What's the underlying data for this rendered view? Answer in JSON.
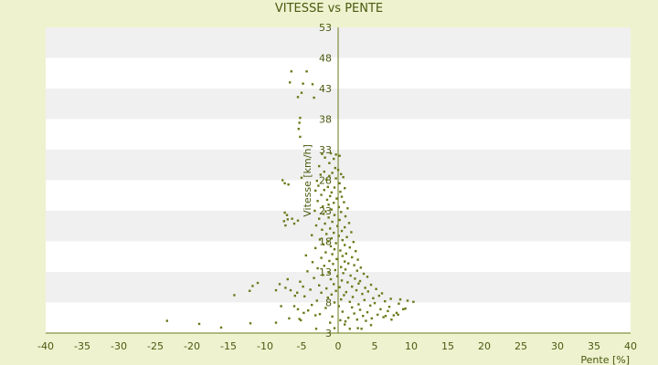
{
  "chart_data": {
    "type": "scatter",
    "title": "VITESSE vs PENTE",
    "xlabel": "Pente [%]",
    "ylabel": "Vitesse [km/h]",
    "xlim": [
      -40,
      40
    ],
    "ylim": [
      3,
      53
    ],
    "xticks": [
      -40,
      -35,
      -30,
      -25,
      -20,
      -15,
      -10,
      -5,
      0,
      5,
      10,
      15,
      20,
      25,
      30,
      35,
      40
    ],
    "yticks": [
      3,
      8,
      13,
      18,
      23,
      28,
      33,
      38,
      43,
      48,
      53
    ],
    "grid": "alternating-horizontal-bands",
    "colors": {
      "background": "#eef2cf",
      "plot_band_light": "#ffffff",
      "plot_band_dark": "#f0f0f0",
      "axis": "#6b7a1a",
      "marker": "#6b7a1a",
      "text": "#4a5a10"
    },
    "points": [
      [
        -6.4,
        45.8
      ],
      [
        -6.6,
        44.0
      ],
      [
        -4.8,
        43.8
      ],
      [
        -4.3,
        45.8
      ],
      [
        -3.5,
        43.7
      ],
      [
        -5.0,
        42.3
      ],
      [
        -3.3,
        41.5
      ],
      [
        -5.5,
        41.6
      ],
      [
        -5.2,
        38.2
      ],
      [
        -5.3,
        37.4
      ],
      [
        -5.4,
        36.4
      ],
      [
        -5.2,
        35.1
      ],
      [
        -2.2,
        32.3
      ],
      [
        -1.0,
        32.4
      ],
      [
        -0.3,
        32.2
      ],
      [
        0.2,
        32.0
      ],
      [
        -1.8,
        31.7
      ],
      [
        -0.6,
        31.5
      ],
      [
        -1.2,
        30.8
      ],
      [
        -2.6,
        30.3
      ],
      [
        -0.4,
        30.0
      ],
      [
        0.0,
        29.7
      ],
      [
        -1.9,
        29.4
      ],
      [
        -0.8,
        29.2
      ],
      [
        0.4,
        29.0
      ],
      [
        -2.4,
        28.9
      ],
      [
        -1.2,
        28.7
      ],
      [
        0.7,
        28.5
      ],
      [
        -5.0,
        28.4
      ],
      [
        -0.3,
        28.3
      ],
      [
        -1.6,
        28.1
      ],
      [
        -7.6,
        28.0
      ],
      [
        -2.9,
        27.9
      ],
      [
        -6.8,
        27.3
      ],
      [
        -7.3,
        27.5
      ],
      [
        0.2,
        27.5
      ],
      [
        -2.7,
        27.1
      ],
      [
        -1.4,
        26.9
      ],
      [
        -0.5,
        26.8
      ],
      [
        0.9,
        26.7
      ],
      [
        -1.9,
        26.4
      ],
      [
        -3.1,
        26.3
      ],
      [
        0.3,
        26.1
      ],
      [
        -0.9,
        26.0
      ],
      [
        -2.3,
        25.6
      ],
      [
        -1.1,
        25.4
      ],
      [
        0.5,
        25.3
      ],
      [
        -0.2,
        25.0
      ],
      [
        -1.5,
        24.8
      ],
      [
        -2.8,
        24.6
      ],
      [
        0.8,
        24.4
      ],
      [
        -0.6,
        24.3
      ],
      [
        -1.3,
        24.0
      ],
      [
        -2.1,
        23.7
      ],
      [
        0.1,
        23.6
      ],
      [
        1.3,
        23.4
      ],
      [
        -0.9,
        23.2
      ],
      [
        -3.2,
        23.0
      ],
      [
        -1.7,
        22.9
      ],
      [
        0.4,
        22.8
      ],
      [
        -7.3,
        22.7
      ],
      [
        -7.0,
        22.3
      ],
      [
        -6.9,
        21.6
      ],
      [
        -7.4,
        21.3
      ],
      [
        -6.3,
        21.7
      ],
      [
        -5.5,
        21.4
      ],
      [
        -7.2,
        20.6
      ],
      [
        -6.0,
        20.9
      ],
      [
        -2.0,
        22.5
      ],
      [
        -0.5,
        22.3
      ],
      [
        1.0,
        22.1
      ],
      [
        -1.3,
        21.9
      ],
      [
        -2.6,
        21.7
      ],
      [
        0.2,
        21.5
      ],
      [
        -0.8,
        21.2
      ],
      [
        1.5,
        21.0
      ],
      [
        -1.8,
        20.9
      ],
      [
        -3.0,
        20.6
      ],
      [
        -0.1,
        20.5
      ],
      [
        0.9,
        20.3
      ],
      [
        -1.1,
        20.1
      ],
      [
        -2.2,
        19.9
      ],
      [
        0.5,
        19.7
      ],
      [
        1.8,
        19.5
      ],
      [
        -0.6,
        19.4
      ],
      [
        -1.6,
        19.2
      ],
      [
        -3.6,
        19.0
      ],
      [
        0.1,
        18.9
      ],
      [
        1.2,
        18.7
      ],
      [
        -0.9,
        18.5
      ],
      [
        -2.5,
        18.3
      ],
      [
        0.6,
        18.2
      ],
      [
        -1.4,
        18.0
      ],
      [
        2.1,
        17.9
      ],
      [
        -0.3,
        17.7
      ],
      [
        -2.0,
        17.5
      ],
      [
        0.9,
        17.4
      ],
      [
        -1.0,
        17.2
      ],
      [
        1.6,
        17.0
      ],
      [
        -3.1,
        16.9
      ],
      [
        -0.5,
        16.7
      ],
      [
        0.3,
        16.5
      ],
      [
        2.4,
        16.4
      ],
      [
        -1.7,
        16.2
      ],
      [
        1.1,
        16.0
      ],
      [
        -0.8,
        15.9
      ],
      [
        -4.4,
        15.7
      ],
      [
        0.6,
        15.6
      ],
      [
        1.9,
        15.4
      ],
      [
        -2.3,
        15.3
      ],
      [
        -0.2,
        15.1
      ],
      [
        2.7,
        15.0
      ],
      [
        -1.2,
        14.8
      ],
      [
        0.9,
        14.7
      ],
      [
        -3.5,
        14.6
      ],
      [
        1.4,
        14.4
      ],
      [
        -0.7,
        14.3
      ],
      [
        2.2,
        14.1
      ],
      [
        -1.9,
        14.0
      ],
      [
        0.4,
        13.8
      ],
      [
        3.1,
        13.7
      ],
      [
        -2.8,
        13.6
      ],
      [
        1.0,
        13.4
      ],
      [
        -0.4,
        13.3
      ],
      [
        2.6,
        13.2
      ],
      [
        -4.2,
        13.1
      ],
      [
        -1.3,
        12.9
      ],
      [
        0.7,
        12.8
      ],
      [
        3.5,
        12.7
      ],
      [
        -2.1,
        12.5
      ],
      [
        1.7,
        12.4
      ],
      [
        -0.1,
        12.3
      ],
      [
        4.0,
        12.2
      ],
      [
        -3.3,
        12.0
      ],
      [
        2.3,
        11.9
      ],
      [
        -1.0,
        11.8
      ],
      [
        0.5,
        11.6
      ],
      [
        3.0,
        11.5
      ],
      [
        -5.2,
        11.4
      ],
      [
        1.3,
        11.3
      ],
      [
        -6.9,
        11.8
      ],
      [
        -8.0,
        11.0
      ],
      [
        -7.2,
        10.4
      ],
      [
        -6.5,
        10.0
      ],
      [
        -4.8,
        10.6
      ],
      [
        -5.6,
        9.6
      ],
      [
        -11.7,
        10.7
      ],
      [
        -11.0,
        11.2
      ],
      [
        -12.1,
        9.9
      ],
      [
        -14.2,
        9.2
      ],
      [
        -8.5,
        10.0
      ],
      [
        -5.9,
        9.1
      ],
      [
        2.8,
        11.1
      ],
      [
        -0.6,
        11.0
      ],
      [
        4.5,
        10.9
      ],
      [
        -2.6,
        10.8
      ],
      [
        1.9,
        10.6
      ],
      [
        0.2,
        10.5
      ],
      [
        3.7,
        10.4
      ],
      [
        -1.6,
        10.3
      ],
      [
        5.2,
        10.2
      ],
      [
        -3.8,
        10.1
      ],
      [
        2.5,
        10.0
      ],
      [
        -0.3,
        9.9
      ],
      [
        4.1,
        9.8
      ],
      [
        1.1,
        9.7
      ],
      [
        -2.3,
        9.6
      ],
      [
        6.0,
        9.5
      ],
      [
        3.3,
        9.4
      ],
      [
        -0.9,
        9.3
      ],
      [
        0.8,
        9.2
      ],
      [
        5.6,
        9.1
      ],
      [
        -4.6,
        9.0
      ],
      [
        2.0,
        8.9
      ],
      [
        -1.4,
        8.8
      ],
      [
        4.8,
        8.7
      ],
      [
        7.2,
        8.6
      ],
      [
        0.4,
        8.5
      ],
      [
        3.6,
        8.4
      ],
      [
        -2.9,
        8.3
      ],
      [
        6.4,
        8.2
      ],
      [
        1.6,
        8.1
      ],
      [
        -0.5,
        8.0
      ],
      [
        5.0,
        7.9
      ],
      [
        8.3,
        7.8
      ],
      [
        2.8,
        7.7
      ],
      [
        -3.6,
        7.6
      ],
      [
        4.4,
        7.5
      ],
      [
        0.1,
        7.4
      ],
      [
        7.0,
        7.3
      ],
      [
        1.9,
        7.2
      ],
      [
        -1.7,
        7.1
      ],
      [
        9.2,
        7.0
      ],
      [
        5.8,
        6.9
      ],
      [
        3.0,
        6.8
      ],
      [
        -4.1,
        6.7
      ],
      [
        6.8,
        6.6
      ],
      [
        0.6,
        6.5
      ],
      [
        4.0,
        6.4
      ],
      [
        8.0,
        6.3
      ],
      [
        2.2,
        6.2
      ],
      [
        -2.5,
        6.1
      ],
      [
        5.4,
        6.0
      ],
      [
        7.6,
        5.9
      ],
      [
        3.4,
        5.8
      ],
      [
        -0.8,
        5.7
      ],
      [
        6.2,
        5.6
      ],
      [
        1.4,
        5.5
      ],
      [
        4.6,
        5.4
      ],
      [
        -5.3,
        5.3
      ],
      [
        2.6,
        5.2
      ],
      [
        0.3,
        5.1
      ],
      [
        3.8,
        5.0
      ],
      [
        1.0,
        4.9
      ],
      [
        8.5,
        8.5
      ],
      [
        9.5,
        8.3
      ],
      [
        10.3,
        8.1
      ],
      [
        8.9,
        6.9
      ],
      [
        8.2,
        6.0
      ],
      [
        7.3,
        5.2
      ],
      [
        6.5,
        5.8
      ],
      [
        -6.0,
        7.4
      ],
      [
        -5.5,
        6.9
      ],
      [
        -4.7,
        6.3
      ],
      [
        -3.1,
        5.9
      ],
      [
        -7.8,
        7.4
      ],
      [
        -5.1,
        5.1
      ],
      [
        -23.4,
        5.0
      ],
      [
        -19.0,
        4.5
      ],
      [
        -16.0,
        3.9
      ],
      [
        -12.0,
        4.6
      ],
      [
        -8.5,
        4.7
      ],
      [
        -6.7,
        5.4
      ],
      [
        -3.0,
        3.7
      ],
      [
        -0.5,
        3.8
      ],
      [
        1.6,
        3.7
      ],
      [
        2.7,
        3.8
      ],
      [
        4.5,
        4.3
      ],
      [
        3.2,
        3.7
      ],
      [
        0.9,
        4.4
      ],
      [
        -1.1,
        4.7
      ]
    ]
  }
}
